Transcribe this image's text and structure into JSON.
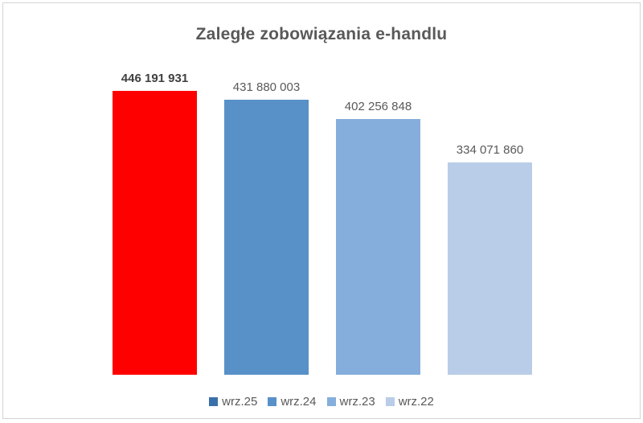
{
  "window": {
    "background": "#FFFFFF",
    "frame_border_color": "#D4D4D4"
  },
  "styles": {
    "title_color": "#595959",
    "label_color": "#595959",
    "emphasis_label_color": "#404040",
    "legend_text_color": "#595959"
  },
  "chart_data": {
    "type": "bar",
    "title": "Zaległe zobowiązania e-handlu",
    "xlabel": "",
    "ylabel": "",
    "categories": [
      "wrz.25",
      "wrz.24",
      "wrz.23",
      "wrz.22"
    ],
    "series": [
      {
        "name": "wrz.25",
        "value": 446191931,
        "label": "446 191 931",
        "bar_color": "#FF0000",
        "legend_color": "#3A70A9",
        "emphasized": true
      },
      {
        "name": "wrz.24",
        "value": 431880003,
        "label": "431 880 003",
        "bar_color": "#5890C8",
        "legend_color": "#5890C8",
        "emphasized": false
      },
      {
        "name": "wrz.23",
        "value": 402256848,
        "label": "402 256 848",
        "bar_color": "#85AEDC",
        "legend_color": "#85AEDC",
        "emphasized": false
      },
      {
        "name": "wrz.22",
        "value": 334071860,
        "label": "334 071 860",
        "bar_color": "#B9CDE8",
        "legend_color": "#B9CDE8",
        "emphasized": false
      }
    ],
    "ylim": [
      0,
      446191931
    ],
    "grid": false,
    "axes_visible": false,
    "data_labels": "above-bars",
    "legend_position": "bottom"
  }
}
